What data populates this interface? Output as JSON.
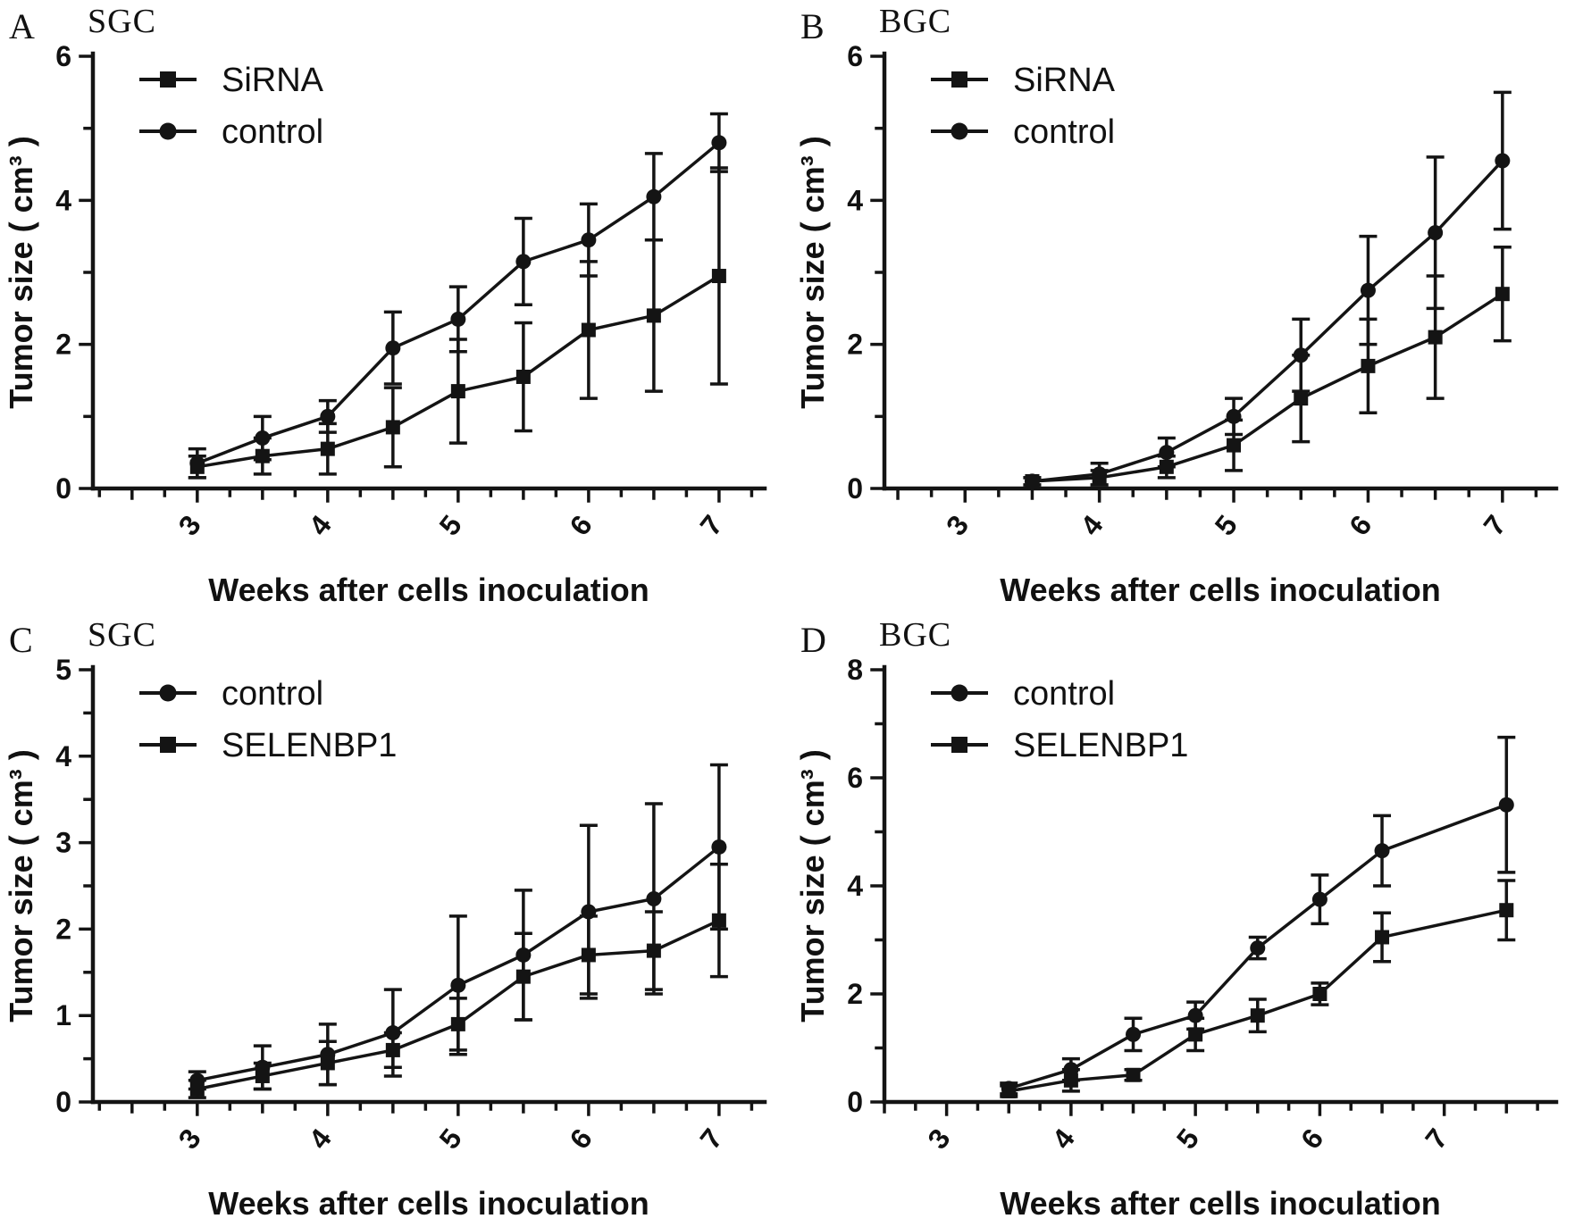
{
  "figure": {
    "xlabel": "Weeks after cells inoculation",
    "ylabel": "Tumor size ( cm³ )"
  },
  "chart_data": [
    {
      "type": "line",
      "panel_label": "A",
      "title": "SGC",
      "xlabel": "Weeks after cells inoculation",
      "ylabel": "Tumor size ( cm³ )",
      "xlim": [
        2.2,
        7.35
      ],
      "ylim": [
        0,
        6
      ],
      "xticks": [
        3,
        4,
        5,
        6,
        7
      ],
      "yticks": [
        0,
        2,
        4,
        6
      ],
      "legend_position": "top-left",
      "grid": false,
      "series": [
        {
          "name": "SiRNA",
          "marker": "square",
          "x": [
            3,
            3.5,
            4,
            4.5,
            5,
            5.5,
            6,
            6.5,
            7
          ],
          "y": [
            0.3,
            0.45,
            0.55,
            0.85,
            1.35,
            1.55,
            2.2,
            2.4,
            2.95
          ],
          "err": [
            0.15,
            0.25,
            0.35,
            0.55,
            0.72,
            0.75,
            0.95,
            1.05,
            1.5
          ]
        },
        {
          "name": "control",
          "marker": "circle",
          "x": [
            3,
            3.5,
            4,
            4.5,
            5,
            5.5,
            6,
            6.5,
            7
          ],
          "y": [
            0.35,
            0.7,
            1.0,
            1.95,
            2.35,
            3.15,
            3.45,
            4.05,
            4.8
          ],
          "err": [
            0.2,
            0.3,
            0.22,
            0.5,
            0.45,
            0.6,
            0.5,
            0.6,
            0.4
          ]
        }
      ]
    },
    {
      "type": "line",
      "panel_label": "B",
      "title": "BGC",
      "xlabel": "Weeks after cells inoculation",
      "ylabel": "Tumor size ( cm³ )",
      "xlim": [
        2.4,
        7.4
      ],
      "ylim": [
        0,
        6
      ],
      "xticks": [
        3,
        4,
        5,
        6,
        7
      ],
      "yticks": [
        0,
        2,
        4,
        6
      ],
      "legend_position": "top-left",
      "grid": false,
      "series": [
        {
          "name": "SiRNA",
          "marker": "square",
          "x": [
            3.5,
            4,
            4.5,
            5,
            5.5,
            6,
            6.5,
            7
          ],
          "y": [
            0.1,
            0.15,
            0.3,
            0.6,
            1.25,
            1.7,
            2.1,
            2.7
          ],
          "err": [
            0.05,
            0.1,
            0.15,
            0.35,
            0.6,
            0.65,
            0.85,
            0.65
          ]
        },
        {
          "name": "control",
          "marker": "circle",
          "x": [
            3.5,
            4,
            4.5,
            5,
            5.5,
            6,
            6.5,
            7
          ],
          "y": [
            0.1,
            0.2,
            0.5,
            1.0,
            1.85,
            2.75,
            3.55,
            4.55
          ],
          "err": [
            0.05,
            0.15,
            0.2,
            0.25,
            0.5,
            0.75,
            1.05,
            0.95
          ]
        }
      ]
    },
    {
      "type": "line",
      "panel_label": "C",
      "title": "SGC",
      "xlabel": "Weeks after cells inoculation",
      "ylabel": "Tumor size ( cm³ )",
      "xlim": [
        2.2,
        7.35
      ],
      "ylim": [
        0,
        5
      ],
      "xticks": [
        3,
        4,
        5,
        6,
        7
      ],
      "yticks": [
        0,
        1,
        2,
        3,
        4,
        5
      ],
      "legend_position": "top-left",
      "grid": false,
      "series": [
        {
          "name": "control",
          "marker": "circle",
          "x": [
            3,
            3.5,
            4,
            4.5,
            5,
            5.5,
            6,
            6.5,
            7
          ],
          "y": [
            0.25,
            0.4,
            0.55,
            0.8,
            1.35,
            1.7,
            2.2,
            2.35,
            2.95
          ],
          "err": [
            0.1,
            0.25,
            0.35,
            0.5,
            0.8,
            0.75,
            1.0,
            1.1,
            0.95
          ]
        },
        {
          "name": "SELENBP1",
          "marker": "square",
          "x": [
            3,
            3.5,
            4,
            4.5,
            5,
            5.5,
            6,
            6.5,
            7
          ],
          "y": [
            0.15,
            0.3,
            0.45,
            0.6,
            0.9,
            1.45,
            1.7,
            1.75,
            2.1
          ],
          "err": [
            0.1,
            0.15,
            0.25,
            0.2,
            0.3,
            0.5,
            0.45,
            0.45,
            0.65
          ]
        }
      ]
    },
    {
      "type": "line",
      "panel_label": "D",
      "title": "BGC",
      "xlabel": "Weeks after cells inoculation",
      "ylabel": "Tumor size ( cm³ )",
      "xlim": [
        2.5,
        7.9
      ],
      "ylim": [
        0,
        8
      ],
      "xticks": [
        3,
        4,
        5,
        6,
        7
      ],
      "yticks": [
        0,
        2,
        4,
        6,
        8
      ],
      "legend_position": "top-left",
      "grid": false,
      "series": [
        {
          "name": "control",
          "marker": "circle",
          "x": [
            3.5,
            4,
            4.5,
            5,
            5.5,
            6,
            6.5,
            7.5
          ],
          "y": [
            0.25,
            0.6,
            1.25,
            1.6,
            2.85,
            3.75,
            4.65,
            5.5
          ],
          "err": [
            0.1,
            0.2,
            0.3,
            0.25,
            0.2,
            0.45,
            0.65,
            1.25
          ]
        },
        {
          "name": "SELENBP1",
          "marker": "square",
          "x": [
            3.5,
            4,
            4.5,
            5,
            5.5,
            6,
            6.5,
            7.5
          ],
          "y": [
            0.2,
            0.4,
            0.5,
            1.25,
            1.6,
            2.0,
            3.05,
            3.55
          ],
          "err": [
            0.1,
            0.2,
            0.1,
            0.3,
            0.3,
            0.2,
            0.45,
            0.55
          ]
        }
      ]
    }
  ]
}
